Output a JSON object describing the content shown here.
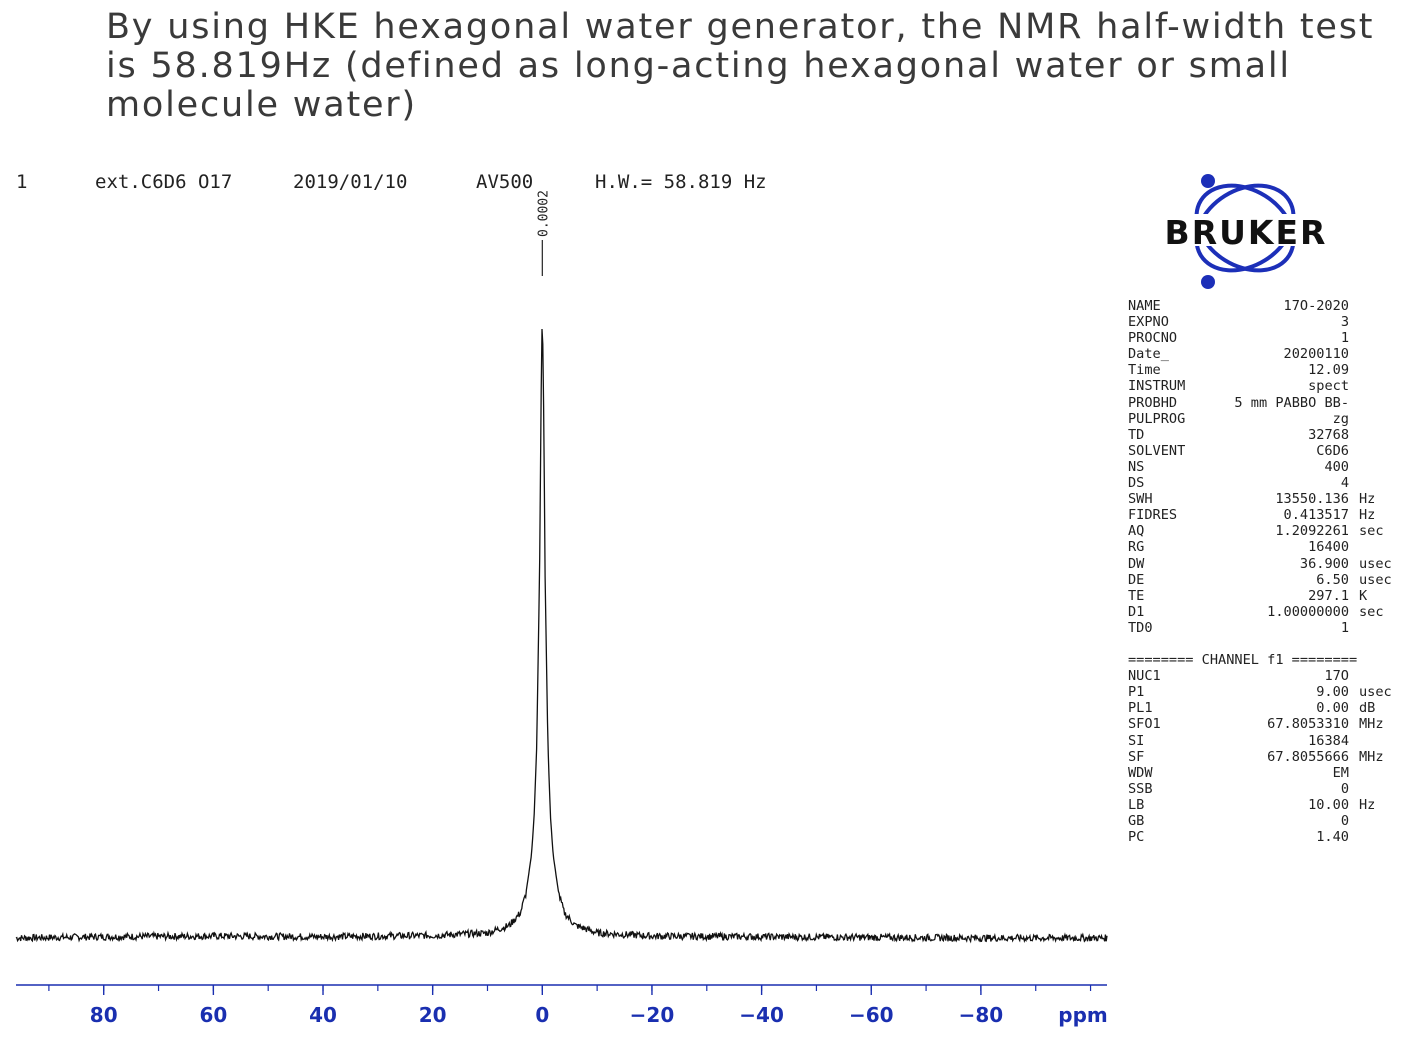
{
  "headline": "By using HKE hexagonal water generator, the NMR half-width test is 58.819Hz (defined as long-acting hexagonal water or small molecule water)",
  "spectrum_header": {
    "expno": "1",
    "sample": "ext.C6D6 O17",
    "date": "2019/01/10",
    "instrument": "AV500",
    "half_width": "H.W.= 58.819 Hz"
  },
  "logo": {
    "text": "BRUKER",
    "color": "#1c2fb8"
  },
  "parameters": [
    {
      "name": "NAME",
      "value": "17O-2020",
      "unit": ""
    },
    {
      "name": "EXPNO",
      "value": "3",
      "unit": ""
    },
    {
      "name": "PROCNO",
      "value": "1",
      "unit": ""
    },
    {
      "name": "Date_",
      "value": "20200110",
      "unit": ""
    },
    {
      "name": "Time",
      "value": "12.09",
      "unit": ""
    },
    {
      "name": "INSTRUM",
      "value": "spect",
      "unit": ""
    },
    {
      "name": "PROBHD",
      "value": "5 mm PABBO BB-",
      "unit": ""
    },
    {
      "name": "PULPROG",
      "value": "zg",
      "unit": ""
    },
    {
      "name": "TD",
      "value": "32768",
      "unit": ""
    },
    {
      "name": "SOLVENT",
      "value": "C6D6",
      "unit": ""
    },
    {
      "name": "NS",
      "value": "400",
      "unit": ""
    },
    {
      "name": "DS",
      "value": "4",
      "unit": ""
    },
    {
      "name": "SWH",
      "value": "13550.136",
      "unit": "Hz"
    },
    {
      "name": "FIDRES",
      "value": "0.413517",
      "unit": "Hz"
    },
    {
      "name": "AQ",
      "value": "1.2092261",
      "unit": "sec"
    },
    {
      "name": "RG",
      "value": "16400",
      "unit": ""
    },
    {
      "name": "DW",
      "value": "36.900",
      "unit": "usec"
    },
    {
      "name": "DE",
      "value": "6.50",
      "unit": "usec"
    },
    {
      "name": "TE",
      "value": "297.1",
      "unit": "K"
    },
    {
      "name": "D1",
      "value": "1.00000000",
      "unit": "sec"
    },
    {
      "name": "TD0",
      "value": "1",
      "unit": ""
    }
  ],
  "channel_header": "======== CHANNEL f1 ========",
  "channel_parameters": [
    {
      "name": "NUC1",
      "value": "17O",
      "unit": ""
    },
    {
      "name": "P1",
      "value": "9.00",
      "unit": "usec"
    },
    {
      "name": "PL1",
      "value": "0.00",
      "unit": "dB"
    },
    {
      "name": "SFO1",
      "value": "67.8053310",
      "unit": "MHz"
    },
    {
      "name": "SI",
      "value": "16384",
      "unit": ""
    },
    {
      "name": "SF",
      "value": "67.8055666",
      "unit": "MHz"
    },
    {
      "name": "WDW",
      "value": "EM",
      "unit": ""
    },
    {
      "name": "SSB",
      "value": "0",
      "unit": ""
    },
    {
      "name": "LB",
      "value": "10.00",
      "unit": "Hz"
    },
    {
      "name": "GB",
      "value": "0",
      "unit": ""
    },
    {
      "name": "PC",
      "value": "1.40",
      "unit": ""
    }
  ],
  "chart_data": {
    "type": "line",
    "title": "",
    "xlabel": "ppm",
    "ylabel": "",
    "xlim": [
      96,
      -103
    ],
    "x_ticks": [
      80,
      60,
      40,
      20,
      0,
      -20,
      -40,
      -60,
      -80
    ],
    "x_tick_labels": [
      "80",
      "60",
      "40",
      "20",
      "0",
      "−20",
      "−40",
      "−60",
      "−80"
    ],
    "x_minor_step": 10,
    "reversed_x": true,
    "grid": false,
    "peaks": [
      {
        "position_ppm": 0.0002,
        "label": "0.0002",
        "relative_height": 1.0,
        "half_width_hz": 58.819
      }
    ],
    "series": [
      {
        "x": [
          96,
          80,
          60,
          40,
          20,
          10,
          6,
          4,
          3,
          2,
          1.5,
          1,
          0.5,
          0.25,
          0,
          -0.25,
          -0.5,
          -1,
          -1.5,
          -2,
          -3,
          -4,
          -6,
          -10,
          -20,
          -40,
          -60,
          -80,
          -103
        ],
        "values": [
          0.0,
          0.002,
          0.003,
          0.002,
          0.004,
          0.008,
          0.02,
          0.04,
          0.07,
          0.13,
          0.19,
          0.31,
          0.58,
          0.83,
          1.0,
          0.83,
          0.58,
          0.31,
          0.19,
          0.13,
          0.07,
          0.04,
          0.02,
          0.008,
          0.003,
          0.002,
          0.001,
          0.0,
          0.0
        ]
      }
    ],
    "line_color": "#111111",
    "axis_color": "#1a2fb0"
  }
}
